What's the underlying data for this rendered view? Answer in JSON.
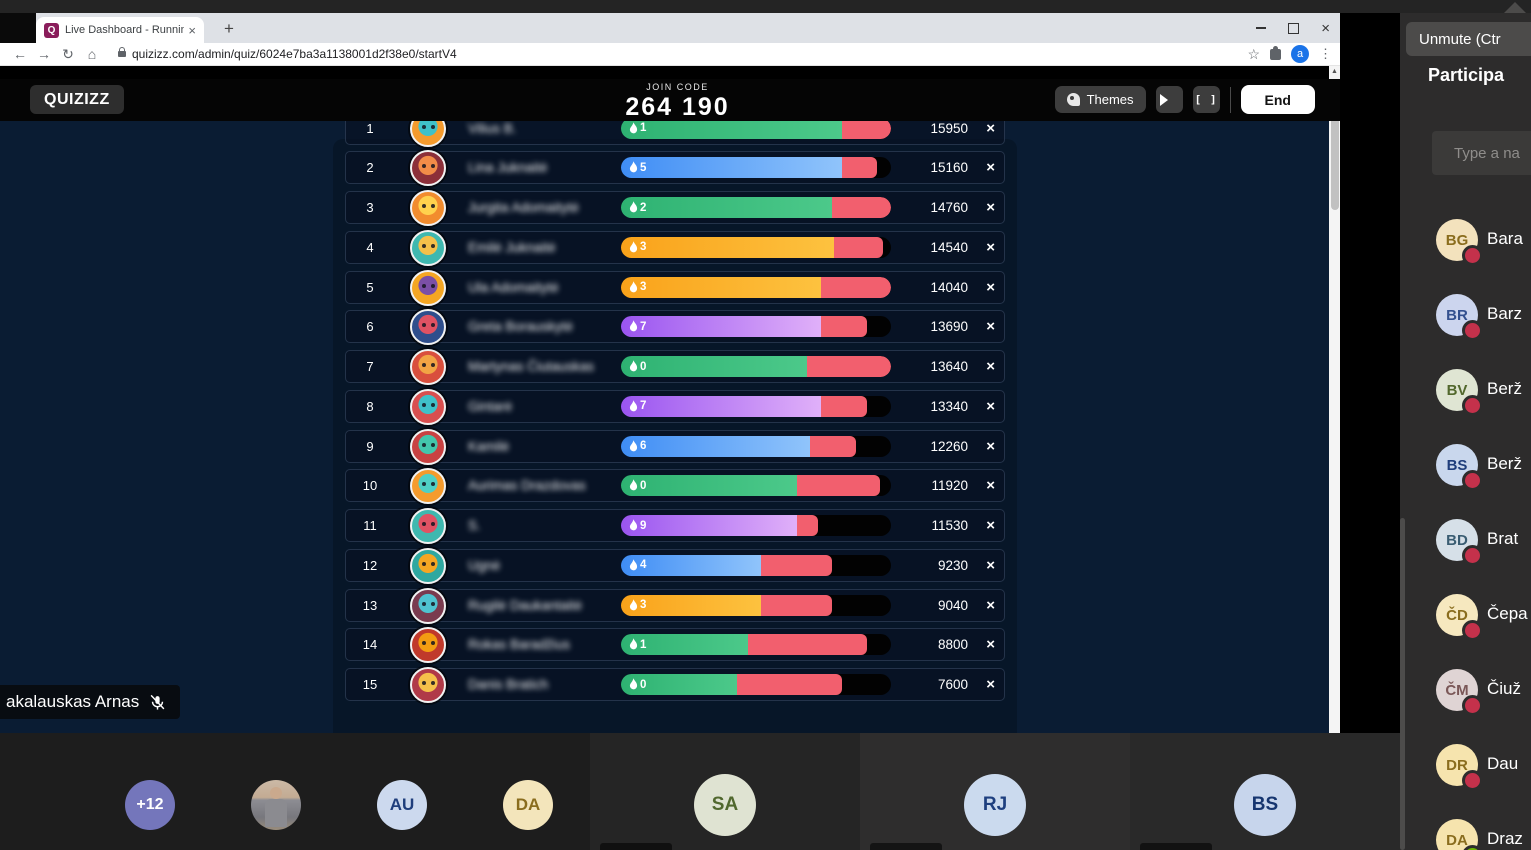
{
  "browser": {
    "tab_title": "Live Dashboard - Running",
    "tab_close": "×",
    "new_tab": "+",
    "url": "quizizz.com/admin/quiz/6024e7ba3a1138001d2f38e0/startV4",
    "nav": {
      "back": "←",
      "forward": "→",
      "reload": "↻",
      "home": "⌂"
    },
    "bookmark_star": "☆",
    "profile_initial": "a",
    "menu_kebab": "⋮",
    "window_close": "×",
    "scroll_up_arrow": "▲"
  },
  "quizizz": {
    "logo": "QUIZIZZ",
    "join_code_label": "JOIN CODE",
    "join_code": "264 190",
    "themes_label": "Themes",
    "end_label": "End",
    "kick_glyph": "×"
  },
  "palette": {
    "green": {
      "from": "#2eb272",
      "to": "#4cc98a"
    },
    "blue": {
      "from": "#3f8df5",
      "to": "#90c4fb"
    },
    "orange": {
      "from": "#f9a21a",
      "to": "#fdc23f"
    },
    "purple": {
      "from": "#9a55f0",
      "to": "#e0b0f9"
    },
    "wrong": "#f25f6e",
    "remaining": "#020202"
  },
  "leaderboard": {
    "players": [
      {
        "rank": "1",
        "name": "Vilius B.",
        "streak": "1",
        "color": "green",
        "correct": 82,
        "wrong": 18,
        "score": "15950",
        "avatar": {
          "bg": "#f59b2d",
          "fg": "#3fc1c9"
        }
      },
      {
        "rank": "2",
        "name": "Lina Juknaitė",
        "streak": "5",
        "color": "blue",
        "correct": 82,
        "wrong": 13,
        "score": "15160",
        "avatar": {
          "bg": "#8c2f39",
          "fg": "#f28c48"
        }
      },
      {
        "rank": "3",
        "name": "Jurgita Adomaitytė",
        "streak": "2",
        "color": "green",
        "correct": 78,
        "wrong": 22,
        "score": "14760",
        "avatar": {
          "bg": "#f28c2e",
          "fg": "#ffd24d"
        }
      },
      {
        "rank": "4",
        "name": "Emilė Juknaitė",
        "streak": "3",
        "color": "orange",
        "correct": 79,
        "wrong": 18,
        "score": "14540",
        "avatar": {
          "bg": "#3fb8af",
          "fg": "#f5c04a"
        }
      },
      {
        "rank": "5",
        "name": "Ula Adomaitytė",
        "streak": "3",
        "color": "orange",
        "correct": 74,
        "wrong": 26,
        "score": "14040",
        "avatar": {
          "bg": "#f5a623",
          "fg": "#7b4fa6"
        }
      },
      {
        "rank": "6",
        "name": "Greta Borauskytė",
        "streak": "7",
        "color": "purple",
        "correct": 74,
        "wrong": 17,
        "score": "13690",
        "avatar": {
          "bg": "#2f4e8c",
          "fg": "#e05263"
        }
      },
      {
        "rank": "7",
        "name": "Martynas Čiutauskas",
        "streak": "0",
        "color": "green",
        "correct": 69,
        "wrong": 31,
        "score": "13640",
        "avatar": {
          "bg": "#d94f3d",
          "fg": "#f2a444"
        }
      },
      {
        "rank": "8",
        "name": "Gintarė",
        "streak": "7",
        "color": "purple",
        "correct": 74,
        "wrong": 17,
        "score": "13340",
        "avatar": {
          "bg": "#d94f4f",
          "fg": "#3fc1c9"
        }
      },
      {
        "rank": "9",
        "name": "Kamilė",
        "streak": "6",
        "color": "blue",
        "correct": 70,
        "wrong": 17,
        "score": "12260",
        "avatar": {
          "bg": "#c94242",
          "fg": "#43c6ac"
        }
      },
      {
        "rank": "10",
        "name": "Aurimas Drazdovas",
        "streak": "0",
        "color": "green",
        "correct": 65,
        "wrong": 31,
        "score": "11920",
        "avatar": {
          "bg": "#f59b2d",
          "fg": "#4fd0c5"
        }
      },
      {
        "rank": "11",
        "name": "S.",
        "streak": "9",
        "color": "purple",
        "correct": 65,
        "wrong": 8,
        "score": "11530",
        "avatar": {
          "bg": "#3fb8af",
          "fg": "#e05263"
        }
      },
      {
        "rank": "12",
        "name": "Ugnė",
        "streak": "4",
        "color": "blue",
        "correct": 52,
        "wrong": 26,
        "score": "9230",
        "avatar": {
          "bg": "#2fa8a0",
          "fg": "#f5a623"
        }
      },
      {
        "rank": "13",
        "name": "Rugilė Daukantaitė",
        "streak": "3",
        "color": "orange",
        "correct": 52,
        "wrong": 26,
        "score": "9040",
        "avatar": {
          "bg": "#7a3b4f",
          "fg": "#4fc3d0"
        }
      },
      {
        "rank": "14",
        "name": "Rokas Baradžius",
        "streak": "1",
        "color": "green",
        "correct": 47,
        "wrong": 44,
        "score": "8800",
        "avatar": {
          "bg": "#c0392b",
          "fg": "#f39c12"
        }
      },
      {
        "rank": "15",
        "name": "Danis Bratich",
        "streak": "0",
        "color": "green",
        "correct": 43,
        "wrong": 39,
        "score": "7600",
        "avatar": {
          "bg": "#b03a48",
          "fg": "#f5c04a"
        }
      }
    ]
  },
  "presenter": {
    "name": "akalauskas Arnas"
  },
  "teams": {
    "tooltip": "Unmute (Ctr",
    "panel_title": "Participa",
    "search_placeholder": "Type a na",
    "participants": [
      {
        "initials": "BG",
        "name": "Bara",
        "bg": "#f3e2bd",
        "fg": "#8a6d1e",
        "dot": "#c4314b"
      },
      {
        "initials": "BR",
        "name": "Barz",
        "bg": "#ccd5ee",
        "fg": "#33508f",
        "dot": "#c4314b"
      },
      {
        "initials": "BV",
        "name": "Berž",
        "bg": "#dfe5d3",
        "fg": "#52682d",
        "dot": "#c4314b"
      },
      {
        "initials": "BS",
        "name": "Berž",
        "bg": "#c9d7ed",
        "fg": "#1f3e7c",
        "dot": "#c4314b"
      },
      {
        "initials": "BD",
        "name": "Brat",
        "bg": "#d6e0e8",
        "fg": "#3a5d72",
        "dot": "#c4314b"
      },
      {
        "initials": "ČD",
        "name": "Čepa",
        "bg": "#f6e8bf",
        "fg": "#8a6d1e",
        "dot": "#c4314b"
      },
      {
        "initials": "ČM",
        "name": "Čiuž",
        "bg": "#dfd4d4",
        "fg": "#7a5757",
        "dot": "#c4314b"
      },
      {
        "initials": "DR",
        "name": "Dau",
        "bg": "#f6e4ae",
        "fg": "#8a6d1e",
        "dot": "#c4314b"
      },
      {
        "initials": "DA",
        "name": "Draz",
        "bg": "#f6e4ae",
        "fg": "#8a6d1e",
        "dot": "#6bb700"
      }
    ],
    "bottom": {
      "overflow_badge": "+12",
      "small_avatars": [
        {
          "initials": "AU",
          "bg": "#ccd9ee",
          "fg": "#1f3e7c"
        },
        {
          "initials": "DA",
          "bg": "#f3e5bb",
          "fg": "#8a6d1e"
        }
      ],
      "tiles": [
        {
          "initials": "SA",
          "tile_bg": "#252525",
          "bg": "#dfe3d2",
          "fg": "#51682e"
        },
        {
          "initials": "RJ",
          "tile_bg": "#2e2d2d",
          "bg": "#cbdaee",
          "fg": "#1e3f7f"
        },
        {
          "initials": "BS",
          "tile_bg": "#292929",
          "bg": "#c7d5ec",
          "fg": "#16356f"
        }
      ]
    }
  }
}
